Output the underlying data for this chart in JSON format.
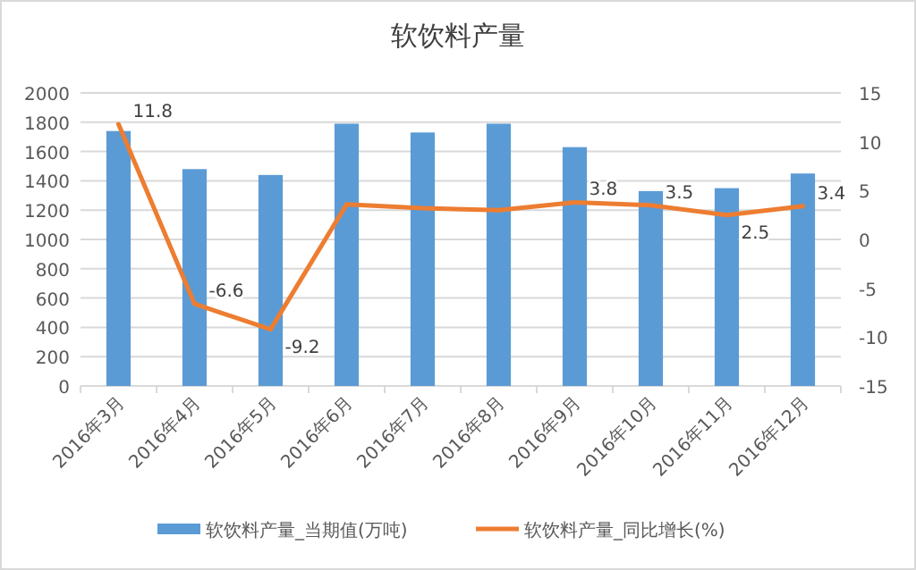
{
  "chart_data": {
    "type": "bar",
    "title": "软饮料产量",
    "categories": [
      "2016年3月",
      "2016年4月",
      "2016年5月",
      "2016年6月",
      "2016年7月",
      "2016年8月",
      "2016年9月",
      "2016年10月",
      "2016年11月",
      "2016年12月"
    ],
    "series": [
      {
        "name": "软饮料产量_当期值(万吨)",
        "color": "#5b9bd5",
        "values": [
          1740,
          1480,
          1440,
          1790,
          1730,
          1790,
          1630,
          1330,
          1350,
          1450
        ]
      },
      {
        "name": "软饮料产量_同比增长(%)",
        "type": "line",
        "axis": "y2",
        "color": "#ed7d31",
        "values": [
          11.8,
          -6.6,
          -9.2,
          3.6,
          3.2,
          3.0,
          3.8,
          3.5,
          2.5,
          3.4
        ],
        "value_labels": [
          "11.8",
          "-6.6",
          "-9.2",
          null,
          null,
          null,
          "3.8",
          "3.5",
          "2.5",
          "3.4"
        ]
      }
    ],
    "ylim": [
      0,
      2000
    ],
    "yticks": [
      0,
      200,
      400,
      600,
      800,
      1000,
      1200,
      1400,
      1600,
      1800,
      2000
    ],
    "y2lim": [
      -15,
      15
    ],
    "y2ticks": [
      -15,
      -10,
      -5,
      0,
      5,
      10,
      15
    ],
    "grid": "y",
    "legend": "bottom",
    "marker": "none"
  }
}
